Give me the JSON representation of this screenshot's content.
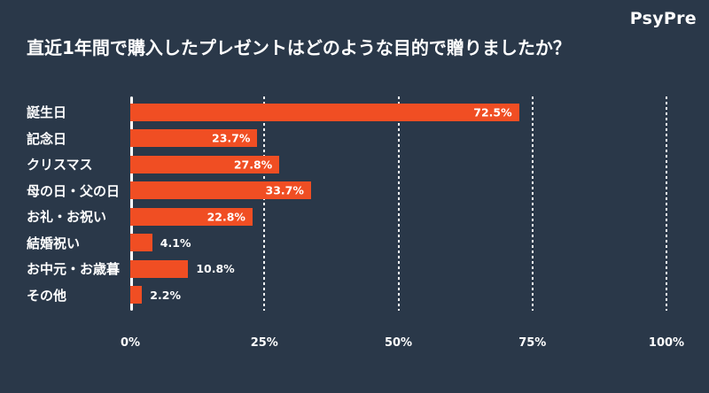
{
  "logo": "PsyPre",
  "title": "直近1年間で購入したプレゼントはどのような目的で贈りましたか？",
  "colors": {
    "background": "#2A3849",
    "bar": "#F04E23",
    "text": "#FFFFFF"
  },
  "chart_data": {
    "type": "bar",
    "orientation": "horizontal",
    "title": "直近1年間で購入したプレゼントはどのような目的で贈りましたか？",
    "categories": [
      "誕生日",
      "記念日",
      "クリスマス",
      "母の日・父の日",
      "お礼・お祝い",
      "結婚祝い",
      "お中元・お歳暮",
      "その他"
    ],
    "values": [
      72.5,
      23.7,
      27.8,
      33.7,
      22.8,
      4.1,
      10.8,
      2.2
    ],
    "value_labels": [
      "72.5%",
      "23.7%",
      "27.8%",
      "33.7%",
      "22.8%",
      "4.1%",
      "10.8%",
      "2.2%"
    ],
    "xlabel": "",
    "ylabel": "",
    "xlim": [
      0,
      100
    ],
    "x_ticks": [
      "0%",
      "25%",
      "50%",
      "75%",
      "100%"
    ],
    "x_tick_values": [
      0,
      25,
      50,
      75,
      100
    ],
    "grid": "vertical dashed white lines at 25/50/75/100, solid axis line at 0",
    "legend": "none",
    "bar_color": "#F04E23",
    "inside_label_min_value": 15
  }
}
